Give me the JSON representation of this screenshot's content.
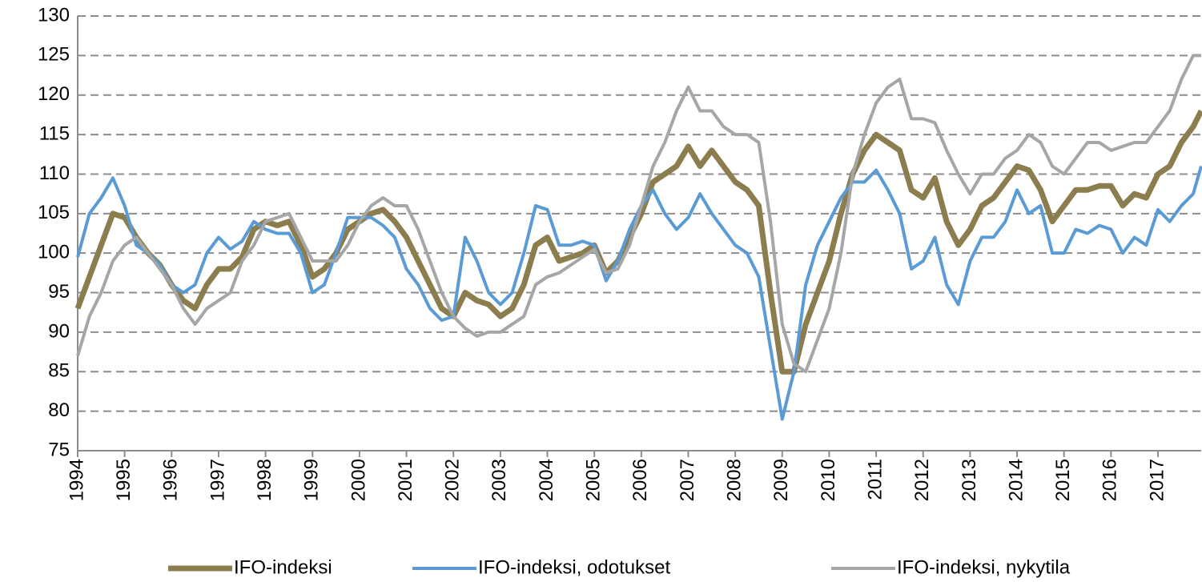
{
  "chart_data": {
    "type": "line",
    "x": [
      1994,
      1994.25,
      1994.5,
      1994.75,
      1995,
      1995.25,
      1995.5,
      1995.75,
      1996,
      1996.25,
      1996.5,
      1996.75,
      1997,
      1997.25,
      1997.5,
      1997.75,
      1998,
      1998.25,
      1998.5,
      1998.75,
      1999,
      1999.25,
      1999.5,
      1999.75,
      2000,
      2000.25,
      2000.5,
      2000.75,
      2001,
      2001.25,
      2001.5,
      2001.75,
      2002,
      2002.25,
      2002.5,
      2002.75,
      2003,
      2003.25,
      2003.5,
      2003.75,
      2004,
      2004.25,
      2004.5,
      2004.75,
      2005,
      2005.25,
      2005.5,
      2005.75,
      2006,
      2006.25,
      2006.5,
      2006.75,
      2007,
      2007.25,
      2007.5,
      2007.75,
      2008,
      2008.25,
      2008.5,
      2008.75,
      2009,
      2009.25,
      2009.5,
      2009.75,
      2010,
      2010.25,
      2010.5,
      2010.75,
      2011,
      2011.25,
      2011.5,
      2011.75,
      2012,
      2012.25,
      2012.5,
      2012.75,
      2013,
      2013.25,
      2013.5,
      2013.75,
      2014,
      2014.25,
      2014.5,
      2014.75,
      2015,
      2015.25,
      2015.5,
      2015.75,
      2016,
      2016.25,
      2016.5,
      2016.75,
      2017,
      2017.25,
      2017.5,
      2017.75,
      2017.92
    ],
    "series": [
      {
        "name": "IFO-indeksi",
        "color": "#8c7d4e",
        "values": [
          93,
          97,
          101,
          105,
          104.5,
          102,
          100,
          98.5,
          96,
          94,
          93,
          96,
          98,
          98,
          99.5,
          103,
          104,
          103.5,
          104,
          101,
          97,
          98,
          100,
          103,
          104,
          105,
          105.5,
          104,
          102,
          99,
          96,
          93,
          92,
          95,
          94,
          93.5,
          92,
          93,
          96,
          101,
          102,
          99,
          99.5,
          100,
          101,
          97.5,
          99,
          102,
          105,
          109,
          110,
          111,
          113.5,
          111,
          113,
          111,
          109,
          108,
          106,
          95,
          85,
          85,
          91,
          95,
          99,
          105,
          110,
          113,
          115,
          114,
          113,
          108,
          107,
          109.5,
          104,
          101,
          103,
          106,
          107,
          109,
          111,
          110.5,
          108,
          104,
          106,
          108,
          108,
          108.5,
          108.5,
          106,
          107.5,
          107,
          110,
          111,
          114,
          116,
          118
        ]
      },
      {
        "name": "IFO-indeksi, odotukset",
        "color": "#5b9bd5",
        "values": [
          99.5,
          105,
          107,
          109.5,
          106,
          101,
          100,
          98.5,
          96,
          95,
          96,
          100,
          102,
          100.5,
          101.5,
          104,
          103,
          102.5,
          102.5,
          100,
          95,
          96,
          100,
          104.5,
          104.5,
          104.5,
          103.5,
          102,
          98,
          96,
          93,
          91.5,
          92,
          102,
          99,
          95,
          93.5,
          95,
          100,
          106,
          105.5,
          101,
          101,
          101.5,
          101,
          96.5,
          99,
          103,
          106,
          108,
          105,
          103,
          104.5,
          107.5,
          105,
          103,
          101,
          100,
          97,
          88,
          79,
          85,
          96,
          101,
          104,
          107,
          109,
          109,
          110.5,
          108,
          105,
          98,
          99,
          102,
          96,
          93.5,
          99,
          102,
          102,
          104,
          108,
          105,
          106,
          100,
          100,
          103,
          102.5,
          103.5,
          103,
          100,
          102,
          101,
          105.5,
          104,
          106,
          107.5,
          111
        ]
      },
      {
        "name": "IFO-indeksi, nykytila",
        "color": "#a6a6a6",
        "values": [
          87,
          92,
          95,
          99,
          101,
          102,
          100,
          98,
          96,
          93,
          91,
          93,
          94,
          95,
          99,
          101,
          104,
          104.5,
          105,
          102,
          99,
          99,
          99,
          101,
          104,
          106,
          107,
          106,
          106,
          103,
          99,
          95,
          92,
          90.5,
          89.5,
          90,
          90,
          91,
          92,
          96,
          97,
          97.5,
          98.5,
          99.5,
          100.5,
          97.5,
          98,
          101,
          106,
          111,
          114,
          118,
          121,
          118,
          118,
          116,
          115,
          115,
          114,
          104,
          91,
          86,
          85,
          89,
          93,
          100,
          110,
          115,
          119,
          121,
          122,
          117,
          117,
          116.5,
          113,
          110,
          107.5,
          110,
          110,
          112,
          113,
          115,
          114,
          111,
          110,
          112,
          114,
          114,
          113,
          113.5,
          114,
          114,
          116,
          118,
          122,
          125,
          125
        ]
      }
    ],
    "xlim": [
      1994,
      2017.92
    ],
    "xticks": [
      1994,
      1995,
      1996,
      1997,
      1998,
      1999,
      2000,
      2001,
      2002,
      2003,
      2004,
      2005,
      2006,
      2007,
      2008,
      2009,
      2010,
      2011,
      2012,
      2013,
      2014,
      2015,
      2016,
      2017
    ],
    "ylim": [
      75,
      130
    ],
    "yticks": [
      75,
      80,
      85,
      90,
      95,
      100,
      105,
      110,
      115,
      120,
      125,
      130
    ],
    "grid": true
  }
}
